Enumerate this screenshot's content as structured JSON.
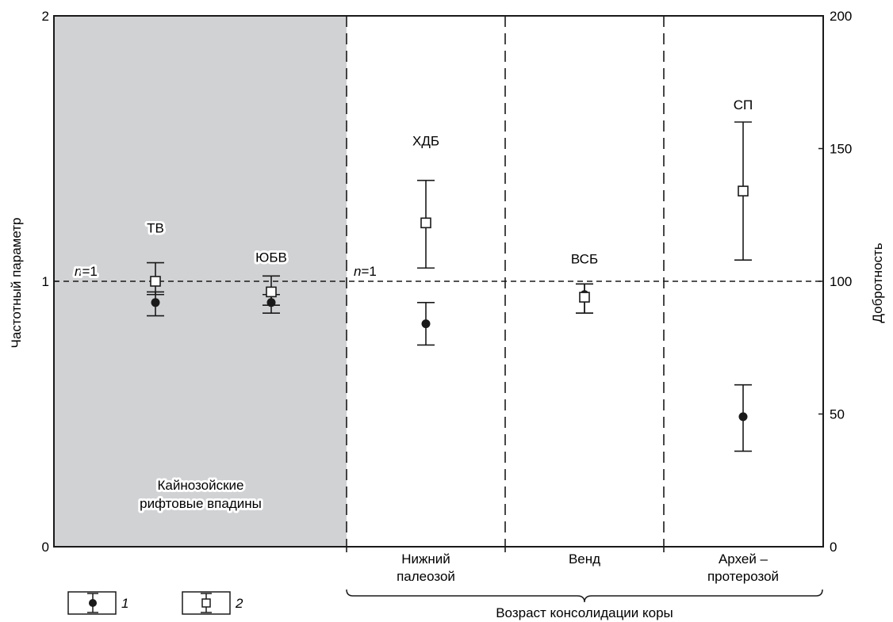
{
  "chart_data": {
    "type": "scatter",
    "ylabel_left": "Частотный параметр",
    "ylabel_right": "Добротность",
    "xlabel": "Возраст консолидации коры",
    "ylim_left": [
      0,
      2
    ],
    "ylim_right": [
      0,
      200
    ],
    "yticks_left": [
      "0",
      "1",
      "2"
    ],
    "yticks_right": [
      "0",
      "50",
      "100",
      "150",
      "200"
    ],
    "reference_lines": [
      {
        "label": "n=1",
        "label_italic": "n",
        "label_rest": "=1",
        "value": 1
      }
    ],
    "regions": [
      {
        "label_line1": "Кайнозойские",
        "label_line2": "рифтовые впадины",
        "shaded": true
      },
      {
        "label_line1": "Нижний",
        "label_line2": "палеозой",
        "shaded": false
      },
      {
        "label_line1": "Венд",
        "label_line2": "",
        "shaded": false
      },
      {
        "label_line1": "Архей –",
        "label_line2": "протерозой",
        "shaded": false
      }
    ],
    "sites": [
      {
        "name": "ТВ",
        "n": {
          "value": 0.92,
          "low": 0.87,
          "high": 0.96
        },
        "Q": {
          "value": 100,
          "low": 95,
          "high": 107
        }
      },
      {
        "name": "ЮБВ",
        "n": {
          "value": 0.92,
          "low": 0.88,
          "high": 0.95
        },
        "Q": {
          "value": 96,
          "low": 91,
          "high": 102
        }
      },
      {
        "name": "ХДБ",
        "n": {
          "value": 0.84,
          "low": 0.76,
          "high": 0.92
        },
        "Q": {
          "value": 122,
          "low": 105,
          "high": 138
        }
      },
      {
        "name": "ВСБ",
        "n": {
          "value": 0.95,
          "low": 0.88,
          "high": 0.99
        },
        "Q": {
          "value": 94,
          "low": 88,
          "high": 99
        }
      },
      {
        "name": "СП",
        "n": {
          "value": 0.49,
          "low": 0.36,
          "high": 0.61
        },
        "Q": {
          "value": 134,
          "low": 108,
          "high": 160
        }
      }
    ],
    "legend": [
      {
        "marker": "filled-circle",
        "label": "1"
      },
      {
        "marker": "open-square",
        "label": "2"
      }
    ],
    "colors": {
      "shade": "#d1d2d4",
      "ink": "#1a1a1a"
    },
    "grid": false
  }
}
